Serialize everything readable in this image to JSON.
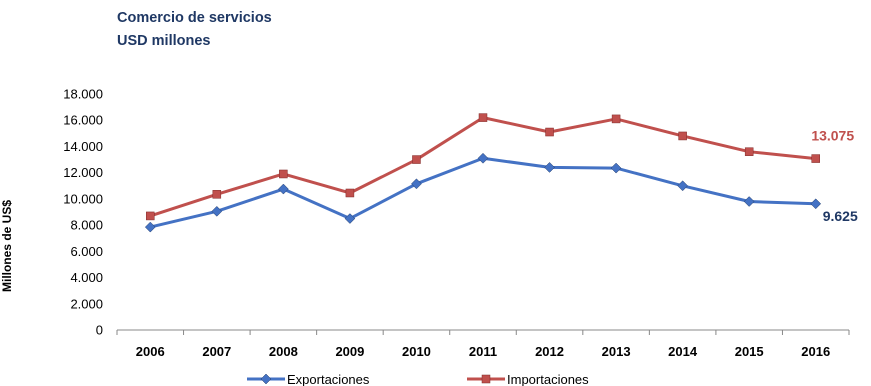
{
  "chart_data": {
    "type": "line",
    "title": "Comercio de servicios",
    "subtitle": "USD millones",
    "ylabel": "Millones de US$",
    "xlabel": "",
    "categories": [
      "2006",
      "2007",
      "2008",
      "2009",
      "2010",
      "2011",
      "2012",
      "2013",
      "2014",
      "2015",
      "2016"
    ],
    "ylim": [
      0,
      18000
    ],
    "yticks": [
      0,
      2000,
      4000,
      6000,
      8000,
      10000,
      12000,
      14000,
      16000,
      18000
    ],
    "ytick_labels": [
      "0",
      "2.000",
      "4.000",
      "6.000",
      "8.000",
      "10.000",
      "12.000",
      "14.000",
      "16.000",
      "18.000"
    ],
    "grid": false,
    "legend_position": "bottom",
    "series": [
      {
        "name": "Exportaciones",
        "color": "#4472c4",
        "marker": "diamond",
        "values": [
          7850,
          9050,
          10750,
          8500,
          11150,
          13100,
          12400,
          12350,
          11000,
          9800,
          9625
        ],
        "end_label": "9.625",
        "end_label_color": "#1f3864"
      },
      {
        "name": "Importaciones",
        "color": "#c0504d",
        "marker": "square",
        "values": [
          8700,
          10350,
          11900,
          10450,
          13000,
          16200,
          15100,
          16100,
          14800,
          13600,
          13075
        ],
        "end_label": "13.075",
        "end_label_color": "#c0504d"
      }
    ]
  }
}
